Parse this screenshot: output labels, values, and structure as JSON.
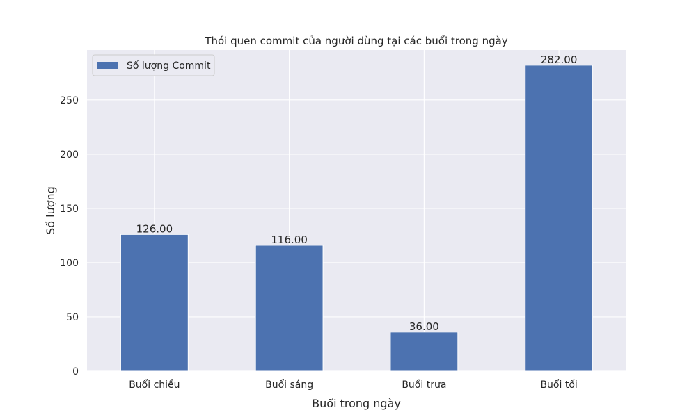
{
  "chart_data": {
    "type": "bar",
    "title": "Thói quen commit của người dùng tại các buổi trong ngày",
    "xlabel": "Buổi trong ngày",
    "ylabel": "Số lượng",
    "categories": [
      "Buổi chiều",
      "Buổi sáng",
      "Buổi trưa",
      "Buổi tối"
    ],
    "series": [
      {
        "name": "Số lượng Commit",
        "values": [
          126,
          116,
          36,
          282
        ],
        "labels": [
          "126.00",
          "116.00",
          "36.00",
          "282.00"
        ]
      }
    ],
    "ylim": [
      0,
      296
    ],
    "yticks": [
      0,
      50,
      100,
      150,
      200,
      250
    ],
    "grid": true,
    "legend_position": "top-left",
    "colors": {
      "bar": "#4c72b0",
      "background": "#eaeaf2",
      "grid": "#ffffff",
      "text": "#262626"
    }
  }
}
